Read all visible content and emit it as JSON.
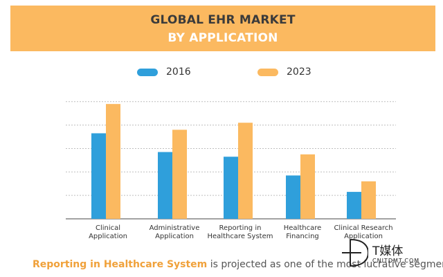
{
  "header": {
    "title_line1": "GLOBAL EHR MARKET",
    "title_line2": "BY APPLICATION"
  },
  "colors": {
    "banner": "#fbb960",
    "series_2016": "#2f9fdb",
    "series_2023": "#fbb960",
    "highlight": "#f0a13a"
  },
  "chart_data": {
    "type": "bar",
    "title": "GLOBAL EHR MARKET BY APPLICATION",
    "categories": [
      [
        "Clinical",
        "Application"
      ],
      [
        "Administrative",
        "Application"
      ],
      [
        "Reporting in",
        "Healthcare System"
      ],
      [
        "Healthcare",
        "Financing"
      ],
      [
        "Clinical Research",
        "Application"
      ]
    ],
    "series": [
      {
        "name": "2016",
        "values": [
          3.65,
          2.85,
          2.65,
          1.85,
          1.15
        ]
      },
      {
        "name": "2023",
        "values": [
          4.9,
          3.8,
          4.1,
          2.75,
          1.6
        ]
      }
    ],
    "ylim": [
      0,
      5.2
    ],
    "gridlines": [
      1,
      2,
      3,
      4,
      5
    ],
    "y_tick_labels": false,
    "grid": true,
    "legend_position": "top-center"
  },
  "footer": {
    "highlight": "Reporting in Healthcare System",
    "rest": " is projected as one of the most lucrative segments."
  },
  "watermark": {
    "cn_text": "T媒体",
    "url_text": "CNITDMT.COM",
    "icon": "td-logo-icon"
  }
}
